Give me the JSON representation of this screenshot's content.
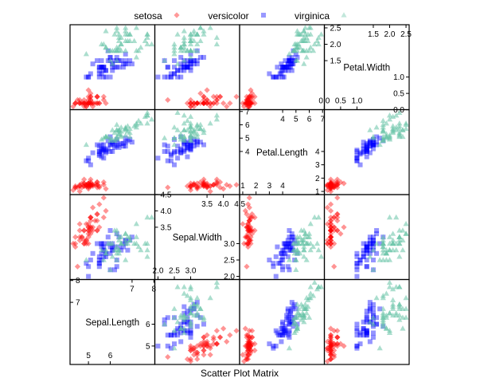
{
  "chart_data": {
    "type": "scatter",
    "subtype": "scatter-matrix",
    "title": "",
    "xlabel": "Scatter Plot Matrix",
    "legend": {
      "placement": "top",
      "entries": [
        "setosa",
        "versicolor",
        "virginica"
      ]
    },
    "variables": [
      "Sepal.Length",
      "Sepal.Width",
      "Petal.Length",
      "Petal.Width"
    ],
    "ranges": {
      "Sepal.Length": [
        4.156,
        8.044
      ],
      "Sepal.Width": [
        1.904,
        4.496
      ],
      "Petal.Length": [
        0.764,
        7.136
      ],
      "Petal.Width": [
        0.004,
        2.596
      ]
    },
    "diagonal_ticks": {
      "Sepal.Length": {
        "low": [
          "5",
          "6"
        ],
        "high": [
          "7",
          "8"
        ]
      },
      "Sepal.Width": {
        "low": [
          "2.0",
          "2.5",
          "3.0"
        ],
        "high": [
          "3.5",
          "4.0",
          "4.5"
        ]
      },
      "Petal.Length": {
        "low": [
          "1",
          "2",
          "3",
          "4"
        ],
        "high": [
          "4",
          "5",
          "6",
          "7"
        ]
      },
      "Petal.Width": {
        "low": [
          "0.0",
          "0.5",
          "1.0"
        ],
        "high": [
          "1.5",
          "2.0",
          "2.5"
        ]
      }
    },
    "grid": false,
    "series": [
      {
        "name": "setosa",
        "marker": "diamond",
        "color": "#FF0000",
        "points": [
          [
            5.1,
            3.5,
            1.4,
            0.2
          ],
          [
            4.9,
            3.0,
            1.4,
            0.2
          ],
          [
            4.7,
            3.2,
            1.3,
            0.2
          ],
          [
            4.6,
            3.1,
            1.5,
            0.2
          ],
          [
            5.0,
            3.6,
            1.4,
            0.2
          ],
          [
            5.4,
            3.9,
            1.7,
            0.4
          ],
          [
            4.6,
            3.4,
            1.4,
            0.3
          ],
          [
            5.0,
            3.4,
            1.5,
            0.2
          ],
          [
            4.4,
            2.9,
            1.4,
            0.2
          ],
          [
            4.9,
            3.1,
            1.5,
            0.1
          ],
          [
            5.4,
            3.7,
            1.5,
            0.2
          ],
          [
            4.8,
            3.4,
            1.6,
            0.2
          ],
          [
            4.8,
            3.0,
            1.4,
            0.1
          ],
          [
            4.3,
            3.0,
            1.1,
            0.1
          ],
          [
            5.8,
            4.0,
            1.2,
            0.2
          ],
          [
            5.7,
            4.4,
            1.5,
            0.4
          ],
          [
            5.4,
            3.9,
            1.3,
            0.4
          ],
          [
            5.1,
            3.5,
            1.4,
            0.3
          ],
          [
            5.7,
            3.8,
            1.7,
            0.3
          ],
          [
            5.1,
            3.8,
            1.5,
            0.3
          ],
          [
            5.4,
            3.4,
            1.7,
            0.2
          ],
          [
            5.1,
            3.7,
            1.5,
            0.4
          ],
          [
            4.6,
            3.6,
            1.0,
            0.2
          ],
          [
            5.1,
            3.3,
            1.7,
            0.5
          ],
          [
            4.8,
            3.4,
            1.9,
            0.2
          ],
          [
            5.0,
            3.0,
            1.6,
            0.2
          ],
          [
            5.0,
            3.4,
            1.6,
            0.4
          ],
          [
            5.2,
            3.5,
            1.5,
            0.2
          ],
          [
            5.2,
            3.4,
            1.4,
            0.2
          ],
          [
            4.7,
            3.2,
            1.6,
            0.2
          ],
          [
            4.8,
            3.1,
            1.6,
            0.2
          ],
          [
            5.4,
            3.4,
            1.5,
            0.4
          ],
          [
            5.2,
            4.1,
            1.5,
            0.1
          ],
          [
            5.5,
            4.2,
            1.4,
            0.2
          ],
          [
            4.9,
            3.1,
            1.5,
            0.2
          ],
          [
            5.0,
            3.2,
            1.2,
            0.2
          ],
          [
            5.5,
            3.5,
            1.3,
            0.2
          ],
          [
            4.9,
            3.6,
            1.4,
            0.1
          ],
          [
            4.4,
            3.0,
            1.3,
            0.2
          ],
          [
            5.1,
            3.4,
            1.5,
            0.2
          ],
          [
            5.0,
            3.5,
            1.3,
            0.3
          ],
          [
            4.5,
            2.3,
            1.3,
            0.3
          ],
          [
            4.4,
            3.2,
            1.3,
            0.2
          ],
          [
            5.0,
            3.5,
            1.6,
            0.6
          ],
          [
            5.1,
            3.8,
            1.9,
            0.4
          ],
          [
            4.8,
            3.0,
            1.4,
            0.3
          ],
          [
            5.1,
            3.8,
            1.6,
            0.2
          ],
          [
            4.6,
            3.2,
            1.4,
            0.2
          ],
          [
            5.3,
            3.7,
            1.5,
            0.2
          ],
          [
            5.0,
            3.3,
            1.4,
            0.2
          ]
        ]
      },
      {
        "name": "versicolor",
        "marker": "square",
        "color": "#0000FF",
        "points": [
          [
            7.0,
            3.2,
            4.7,
            1.4
          ],
          [
            6.4,
            3.2,
            4.5,
            1.5
          ],
          [
            6.9,
            3.1,
            4.9,
            1.5
          ],
          [
            5.5,
            2.3,
            4.0,
            1.3
          ],
          [
            6.5,
            2.8,
            4.6,
            1.5
          ],
          [
            5.7,
            2.8,
            4.5,
            1.3
          ],
          [
            6.3,
            3.3,
            4.7,
            1.6
          ],
          [
            4.9,
            2.4,
            3.3,
            1.0
          ],
          [
            6.6,
            2.9,
            4.6,
            1.3
          ],
          [
            5.2,
            2.7,
            3.9,
            1.4
          ],
          [
            5.0,
            2.0,
            3.5,
            1.0
          ],
          [
            5.9,
            3.0,
            4.2,
            1.5
          ],
          [
            6.0,
            2.2,
            4.0,
            1.0
          ],
          [
            6.1,
            2.9,
            4.7,
            1.4
          ],
          [
            5.6,
            2.9,
            3.6,
            1.3
          ],
          [
            6.7,
            3.1,
            4.4,
            1.4
          ],
          [
            5.6,
            3.0,
            4.5,
            1.5
          ],
          [
            5.8,
            2.7,
            4.1,
            1.0
          ],
          [
            6.2,
            2.2,
            4.5,
            1.5
          ],
          [
            5.6,
            2.5,
            3.9,
            1.1
          ],
          [
            5.9,
            3.2,
            4.8,
            1.8
          ],
          [
            6.1,
            2.8,
            4.0,
            1.3
          ],
          [
            6.3,
            2.5,
            4.9,
            1.5
          ],
          [
            6.1,
            2.8,
            4.7,
            1.2
          ],
          [
            6.4,
            2.9,
            4.3,
            1.3
          ],
          [
            6.6,
            3.0,
            4.4,
            1.4
          ],
          [
            6.8,
            2.8,
            4.8,
            1.4
          ],
          [
            6.7,
            3.0,
            5.0,
            1.7
          ],
          [
            6.0,
            2.9,
            4.5,
            1.5
          ],
          [
            5.7,
            2.6,
            3.5,
            1.0
          ],
          [
            5.5,
            2.4,
            3.8,
            1.1
          ],
          [
            5.5,
            2.4,
            3.7,
            1.0
          ],
          [
            5.8,
            2.7,
            3.9,
            1.2
          ],
          [
            6.0,
            2.7,
            5.1,
            1.6
          ],
          [
            5.4,
            3.0,
            4.5,
            1.5
          ],
          [
            6.0,
            3.4,
            4.5,
            1.6
          ],
          [
            6.7,
            3.1,
            4.7,
            1.5
          ],
          [
            6.3,
            2.3,
            4.4,
            1.3
          ],
          [
            5.6,
            3.0,
            4.1,
            1.3
          ],
          [
            5.5,
            2.5,
            4.0,
            1.3
          ],
          [
            5.5,
            2.6,
            4.4,
            1.2
          ],
          [
            6.1,
            3.0,
            4.6,
            1.4
          ],
          [
            5.8,
            2.6,
            4.0,
            1.2
          ],
          [
            5.0,
            2.3,
            3.3,
            1.0
          ],
          [
            5.6,
            2.7,
            4.2,
            1.3
          ],
          [
            5.7,
            3.0,
            4.2,
            1.2
          ],
          [
            5.7,
            2.9,
            4.2,
            1.3
          ],
          [
            6.2,
            2.9,
            4.3,
            1.3
          ],
          [
            5.1,
            2.5,
            3.0,
            1.1
          ],
          [
            5.7,
            2.8,
            4.1,
            1.3
          ]
        ]
      },
      {
        "name": "virginica",
        "marker": "triangle",
        "color": "#66C2A5",
        "points": [
          [
            6.3,
            3.3,
            6.0,
            2.5
          ],
          [
            5.8,
            2.7,
            5.1,
            1.9
          ],
          [
            7.1,
            3.0,
            5.9,
            2.1
          ],
          [
            6.3,
            2.9,
            5.6,
            1.8
          ],
          [
            6.5,
            3.0,
            5.8,
            2.2
          ],
          [
            7.6,
            3.0,
            6.6,
            2.1
          ],
          [
            4.9,
            2.5,
            4.5,
            1.7
          ],
          [
            7.3,
            2.9,
            6.3,
            1.8
          ],
          [
            6.7,
            2.5,
            5.8,
            1.8
          ],
          [
            7.2,
            3.6,
            6.1,
            2.5
          ],
          [
            6.5,
            3.2,
            5.1,
            2.0
          ],
          [
            6.4,
            2.7,
            5.3,
            1.9
          ],
          [
            6.8,
            3.0,
            5.5,
            2.1
          ],
          [
            5.7,
            2.5,
            5.0,
            2.0
          ],
          [
            5.8,
            2.8,
            5.1,
            2.4
          ],
          [
            6.4,
            3.2,
            5.3,
            2.3
          ],
          [
            6.5,
            3.0,
            5.5,
            1.8
          ],
          [
            7.7,
            3.8,
            6.7,
            2.2
          ],
          [
            7.7,
            2.6,
            6.9,
            2.3
          ],
          [
            6.0,
            2.2,
            5.0,
            1.5
          ],
          [
            6.9,
            3.2,
            5.7,
            2.3
          ],
          [
            5.6,
            2.8,
            4.9,
            2.0
          ],
          [
            7.7,
            2.8,
            6.7,
            2.0
          ],
          [
            6.3,
            2.7,
            4.9,
            1.8
          ],
          [
            6.7,
            3.3,
            5.7,
            2.1
          ],
          [
            7.2,
            3.2,
            6.0,
            1.8
          ],
          [
            6.2,
            2.8,
            4.8,
            1.8
          ],
          [
            6.1,
            3.0,
            4.9,
            1.8
          ],
          [
            6.4,
            2.8,
            5.6,
            2.1
          ],
          [
            7.2,
            3.0,
            5.8,
            1.6
          ],
          [
            7.4,
            2.8,
            6.1,
            1.9
          ],
          [
            7.9,
            3.8,
            6.4,
            2.0
          ],
          [
            6.4,
            2.8,
            5.6,
            2.2
          ],
          [
            6.3,
            2.8,
            5.1,
            1.5
          ],
          [
            6.1,
            2.6,
            5.6,
            1.4
          ],
          [
            7.7,
            3.0,
            6.1,
            2.3
          ],
          [
            6.3,
            3.4,
            5.6,
            2.4
          ],
          [
            6.4,
            3.1,
            5.5,
            1.8
          ],
          [
            6.0,
            3.0,
            4.8,
            1.8
          ],
          [
            6.9,
            3.1,
            5.4,
            2.1
          ],
          [
            6.7,
            3.1,
            5.6,
            2.4
          ],
          [
            6.9,
            3.1,
            5.1,
            2.3
          ],
          [
            5.8,
            2.7,
            5.1,
            1.9
          ],
          [
            6.8,
            3.2,
            5.9,
            2.3
          ],
          [
            6.7,
            3.3,
            5.7,
            2.5
          ],
          [
            6.7,
            3.0,
            5.2,
            2.3
          ],
          [
            6.3,
            2.5,
            5.0,
            1.9
          ],
          [
            6.5,
            3.0,
            5.2,
            2.0
          ],
          [
            6.2,
            3.4,
            5.4,
            2.3
          ],
          [
            5.9,
            3.0,
            5.1,
            1.8
          ]
        ]
      }
    ]
  }
}
